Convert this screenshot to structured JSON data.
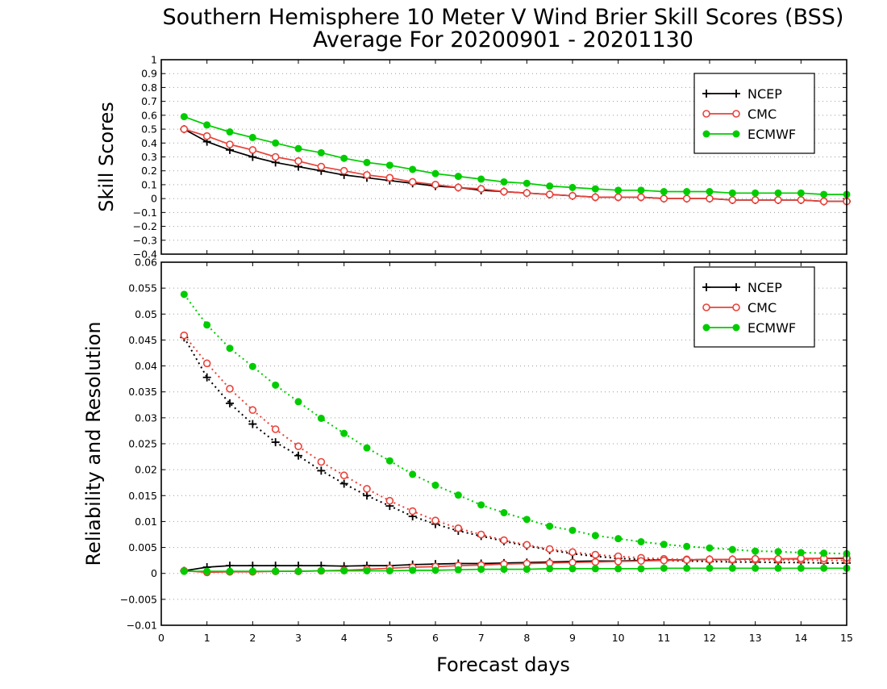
{
  "title": "Southern Hemisphere 10 Meter V Wind Brier Skill Scores (BSS)",
  "subtitle": "Average For 20200901 - 20201130",
  "xlabel": "Forecast days",
  "colors": {
    "NCEP": "#000000",
    "CMC": "#e8423a",
    "ECMWF": "#00cc00"
  },
  "chart_data": [
    {
      "type": "line",
      "panel": "top",
      "ylabel": "Skill Scores",
      "xlim": [
        0,
        15
      ],
      "ylim": [
        -0.4,
        1
      ],
      "grid": true,
      "legend_position": "top-right",
      "x_ticks": [
        0,
        1,
        2,
        3,
        4,
        5,
        6,
        7,
        8,
        9,
        10,
        11,
        12,
        13,
        14,
        15
      ],
      "y_ticks": [
        "−0.4",
        "−0.3",
        "−0.2",
        "−0.1",
        "0",
        "0.1",
        "0.2",
        "0.3",
        "0.4",
        "0.5",
        "0.6",
        "0.7",
        "0.8",
        "0.9",
        "1"
      ],
      "x": [
        0.5,
        1,
        1.5,
        2,
        2.5,
        3,
        3.5,
        4,
        4.5,
        5,
        5.5,
        6,
        6.5,
        7,
        7.5,
        8,
        8.5,
        9,
        9.5,
        10,
        10.5,
        11,
        11.5,
        12,
        12.5,
        13,
        13.5,
        14,
        14.5,
        15
      ],
      "series": [
        {
          "name": "NCEP",
          "marker": "plus",
          "values": [
            0.5,
            0.41,
            0.35,
            0.3,
            0.26,
            0.23,
            0.2,
            0.17,
            0.15,
            0.13,
            0.11,
            0.09,
            0.08,
            0.06,
            0.05,
            0.04,
            0.03,
            0.02,
            0.01,
            0.01,
            0.01,
            0.0,
            0.0,
            0.0,
            -0.01,
            -0.01,
            -0.01,
            -0.01,
            -0.02,
            -0.02
          ]
        },
        {
          "name": "CMC",
          "marker": "open-circle",
          "values": [
            0.5,
            0.45,
            0.39,
            0.35,
            0.3,
            0.27,
            0.23,
            0.2,
            0.17,
            0.15,
            0.12,
            0.1,
            0.08,
            0.07,
            0.05,
            0.04,
            0.03,
            0.02,
            0.01,
            0.01,
            0.01,
            0.0,
            0.0,
            0.0,
            -0.01,
            -0.01,
            -0.01,
            -0.01,
            -0.02,
            -0.02
          ]
        },
        {
          "name": "ECMWF",
          "marker": "filled-circle",
          "values": [
            0.59,
            0.53,
            0.48,
            0.44,
            0.4,
            0.36,
            0.33,
            0.29,
            0.26,
            0.24,
            0.21,
            0.18,
            0.16,
            0.14,
            0.12,
            0.11,
            0.09,
            0.08,
            0.07,
            0.06,
            0.06,
            0.05,
            0.05,
            0.05,
            0.04,
            0.04,
            0.04,
            0.04,
            0.03,
            0.03
          ]
        }
      ]
    },
    {
      "type": "line",
      "panel": "bottom",
      "ylabel": "Reliability and Resolution",
      "xlim": [
        0,
        15
      ],
      "ylim": [
        -0.01,
        0.06
      ],
      "grid": true,
      "legend_position": "top-right",
      "x_ticks": [
        0,
        1,
        2,
        3,
        4,
        5,
        6,
        7,
        8,
        9,
        10,
        11,
        12,
        13,
        14,
        15
      ],
      "y_ticks": [
        "−0.01",
        "−0.005",
        "0",
        "0.005",
        "0.01",
        "0.015",
        "0.02",
        "0.025",
        "0.03",
        "0.035",
        "0.04",
        "0.045",
        "0.05",
        "0.055",
        "0.06"
      ],
      "x": [
        0.5,
        1,
        1.5,
        2,
        2.5,
        3,
        3.5,
        4,
        4.5,
        5,
        5.5,
        6,
        6.5,
        7,
        7.5,
        8,
        8.5,
        9,
        9.5,
        10,
        10.5,
        11,
        11.5,
        12,
        12.5,
        13,
        13.5,
        14,
        14.5,
        15
      ],
      "series": [
        {
          "name": "NCEP",
          "marker": "plus",
          "component": "resolution",
          "line": "dotted",
          "values": [
            0.0455,
            0.0378,
            0.0328,
            0.0288,
            0.0253,
            0.0227,
            0.0198,
            0.0173,
            0.015,
            0.013,
            0.011,
            0.0095,
            0.0082,
            0.0072,
            0.0062,
            0.0053,
            0.0045,
            0.0038,
            0.0033,
            0.0029,
            0.0027,
            0.0025,
            0.0024,
            0.0023,
            0.0022,
            0.0022,
            0.0021,
            0.0021,
            0.002,
            0.002
          ]
        },
        {
          "name": "NCEP",
          "marker": "plus",
          "component": "reliability",
          "line": "solid",
          "values": [
            0.0005,
            0.0012,
            0.0015,
            0.0015,
            0.0015,
            0.0015,
            0.0015,
            0.0014,
            0.0015,
            0.0015,
            0.0017,
            0.0018,
            0.0019,
            0.0019,
            0.002,
            0.0021,
            0.0022,
            0.0023,
            0.0024,
            0.0024,
            0.0025,
            0.0026,
            0.0026,
            0.0027,
            0.0027,
            0.0028,
            0.0028,
            0.0028,
            0.0029,
            0.0029
          ]
        },
        {
          "name": "CMC",
          "marker": "open-circle",
          "component": "resolution",
          "line": "dotted",
          "values": [
            0.0459,
            0.0405,
            0.0356,
            0.0315,
            0.0278,
            0.0245,
            0.0215,
            0.0189,
            0.0163,
            0.014,
            0.012,
            0.0102,
            0.0087,
            0.0075,
            0.0064,
            0.0055,
            0.0047,
            0.0041,
            0.0036,
            0.0033,
            0.003,
            0.0028,
            0.0027,
            0.0026,
            0.0026,
            0.0026,
            0.0026,
            0.0026,
            0.0025,
            0.0025
          ]
        },
        {
          "name": "CMC",
          "marker": "open-circle",
          "component": "reliability",
          "line": "solid",
          "values": [
            0.0005,
            0.0002,
            0.0003,
            0.0003,
            0.0004,
            0.0004,
            0.0005,
            0.0006,
            0.0008,
            0.001,
            0.0012,
            0.0013,
            0.0015,
            0.0016,
            0.0018,
            0.0019,
            0.002,
            0.0021,
            0.0022,
            0.0023,
            0.0024,
            0.0025,
            0.0026,
            0.0027,
            0.0027,
            0.0028,
            0.0028,
            0.0029,
            0.0029,
            0.003
          ]
        },
        {
          "name": "ECMWF",
          "marker": "filled-circle",
          "component": "resolution",
          "line": "dotted",
          "values": [
            0.0538,
            0.0479,
            0.0434,
            0.0399,
            0.0363,
            0.0331,
            0.0299,
            0.027,
            0.0242,
            0.0217,
            0.0191,
            0.017,
            0.0151,
            0.0132,
            0.0117,
            0.0104,
            0.0091,
            0.0083,
            0.0073,
            0.0067,
            0.0061,
            0.0056,
            0.0052,
            0.0049,
            0.0046,
            0.0043,
            0.0042,
            0.004,
            0.0039,
            0.0038
          ]
        },
        {
          "name": "ECMWF",
          "marker": "filled-circle",
          "component": "reliability",
          "line": "solid",
          "values": [
            0.0004,
            0.0004,
            0.0004,
            0.0004,
            0.0004,
            0.0004,
            0.0005,
            0.0005,
            0.0005,
            0.0005,
            0.0006,
            0.0006,
            0.0007,
            0.0008,
            0.0008,
            0.0008,
            0.0009,
            0.0009,
            0.0009,
            0.0009,
            0.0009,
            0.001,
            0.001,
            0.001,
            0.001,
            0.001,
            0.001,
            0.001,
            0.001,
            0.001
          ]
        }
      ]
    }
  ]
}
